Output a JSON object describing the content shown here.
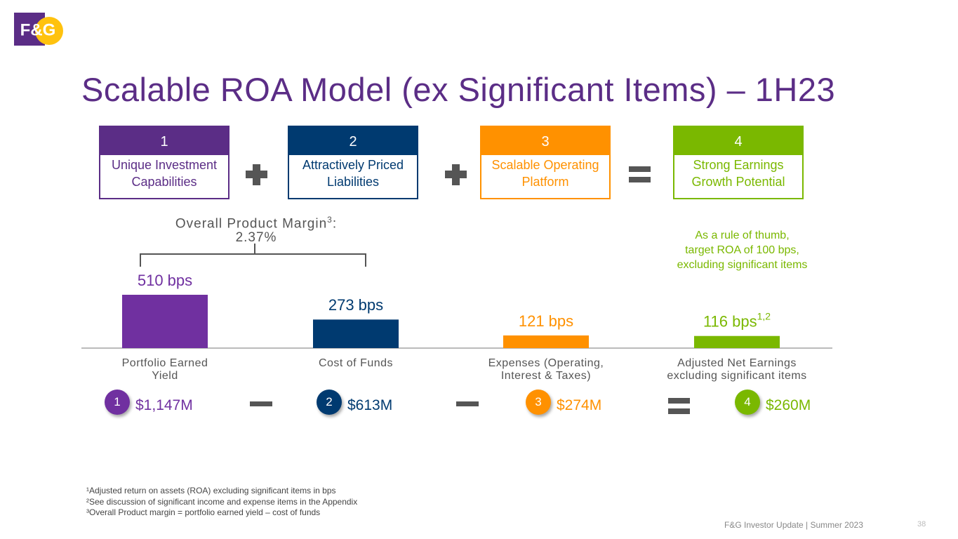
{
  "logo": "F&G",
  "title": "Scalable ROA Model (ex Significant Items) – 1H23",
  "pillars": [
    {
      "number": "1",
      "label": "Unique Investment Capabilities",
      "color": "#5b2d86"
    },
    {
      "number": "2",
      "label": "Attractively Priced Liabilities",
      "color": "#003a70"
    },
    {
      "number": "3",
      "label": "Scalable Operating Platform",
      "color": "#ff9100"
    },
    {
      "number": "4",
      "label": "Strong Earnings Growth Potential",
      "color": "#7ab800"
    }
  ],
  "margin_note": {
    "label": "Overall Product Margin",
    "superscript": "3",
    "suffix": ":",
    "value": "2.37%"
  },
  "rule_of_thumb": [
    "As a rule of thumb,",
    "target ROA of 100 bps,",
    "excluding significant items"
  ],
  "chart_data": {
    "type": "bar",
    "categories": [
      "Portfolio Earned Yield",
      "Cost of Funds",
      "Expenses (Operating, Interest & Taxes)",
      "Adjusted Net Earnings excluding significant items"
    ],
    "values": [
      510,
      273,
      121,
      116
    ],
    "value_labels": [
      "510 bps",
      "273 bps",
      "121 bps",
      "116 bps"
    ],
    "superscript": "1,2",
    "colors": [
      "#7030a0",
      "#003a70",
      "#ff9100",
      "#7ab800"
    ]
  },
  "amounts": [
    {
      "number": "1",
      "value": "$1,147M",
      "color": "#7030a0"
    },
    {
      "number": "2",
      "value": "$613M",
      "color": "#003a70"
    },
    {
      "number": "3",
      "value": "$274M",
      "color": "#ff9100"
    },
    {
      "number": "4",
      "value": "$260M",
      "color": "#7ab800"
    }
  ],
  "footnotes": [
    "¹Adjusted return on assets (ROA) excluding significant items in bps",
    "²See discussion of significant income and expense items in the Appendix",
    "³Overall Product margin = portfolio earned yield – cost of funds"
  ],
  "footer": "F&G Investor Update | Summer 2023",
  "page": "38"
}
